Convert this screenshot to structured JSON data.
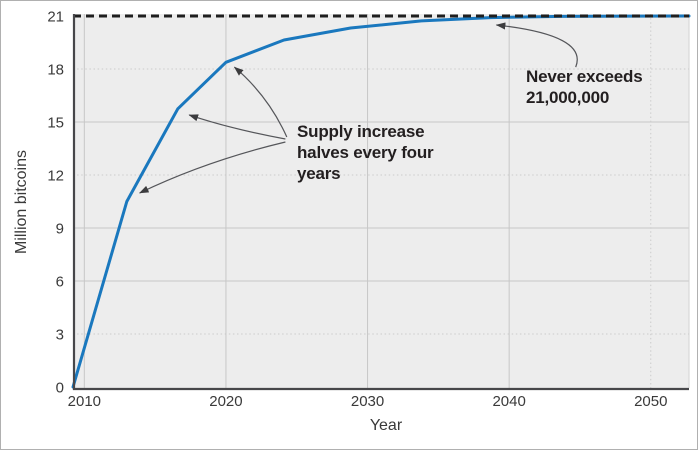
{
  "chart_data": {
    "type": "line",
    "title": "",
    "xlabel": "Year",
    "ylabel": "Million bitcoins",
    "xlim": [
      2009.2,
      2052.7
    ],
    "ylim": [
      0,
      21
    ],
    "x_ticks": {
      "values": [
        2010,
        2020,
        2030,
        2040,
        2050
      ],
      "labels": [
        "2010",
        "2020",
        "2030",
        "2040",
        "2050"
      ]
    },
    "y_ticks": {
      "values": [
        0,
        3,
        6,
        9,
        12,
        15,
        18,
        21
      ],
      "labels": [
        "0",
        "3",
        "6",
        "9",
        "12",
        "15",
        "18",
        "21"
      ]
    },
    "grid": {
      "horizontal_solid_at": [
        6,
        9,
        15
      ],
      "horizontal_dotted_at": [
        3,
        12,
        18
      ],
      "vertical_solid_at": [
        2010,
        2020,
        2030,
        2040
      ],
      "vertical_dotted_at": [
        2050
      ]
    },
    "legend": "none",
    "cap_line": {
      "value": 21,
      "style": "dashed"
    },
    "series": [
      {
        "x": [
          2009.2,
          2013.0,
          2016.6,
          2020.0,
          2024.1,
          2028.8,
          2033.8,
          2038.7,
          2043.7,
          2052.7
        ],
        "y": [
          0,
          10.5,
          15.75,
          18.38,
          19.64,
          20.32,
          20.72,
          20.91,
          20.98,
          21
        ]
      }
    ],
    "annotations": [
      {
        "id": "halving",
        "lines": [
          "Supply increase",
          "halves every four",
          "years"
        ],
        "arrows": [
          {
            "tail": [
              2024.3,
              14.15
            ],
            "ctrl": [
              2023.0,
              16.47
            ],
            "tip": [
              2020.6,
              18.11
            ]
          },
          {
            "tail": [
              2024.2,
              14.04
            ],
            "ctrl": [
              2020.4,
              14.6
            ],
            "tip": [
              2017.4,
              15.4
            ]
          },
          {
            "tail": [
              2024.2,
              13.87
            ],
            "ctrl": [
              2018.6,
              12.79
            ],
            "tip": [
              2013.9,
              10.98
            ]
          }
        ]
      },
      {
        "id": "cap",
        "lines": [
          "Never exceeds",
          "21,000,000"
        ],
        "arrows": [
          {
            "tail": [
              2044.7,
              18.11
            ],
            "ctrl": [
              2045.6,
              19.92
            ],
            "tip": [
              2039.1,
              20.49
            ]
          }
        ]
      }
    ],
    "colors": {
      "line": "#1a78be",
      "cap_line": "#1f1f1f",
      "plot_bg": "#ededed",
      "grid": "#c7c7c7",
      "grid_dotted": "#cccccc",
      "axis_spine": "#47474a",
      "plot_right_edge": "#d2d2d2",
      "tick_text": "#3a3a3a",
      "annotation_text": "#231f20",
      "arrow": "#55565a",
      "figure_border": "#b0b0b0"
    }
  }
}
